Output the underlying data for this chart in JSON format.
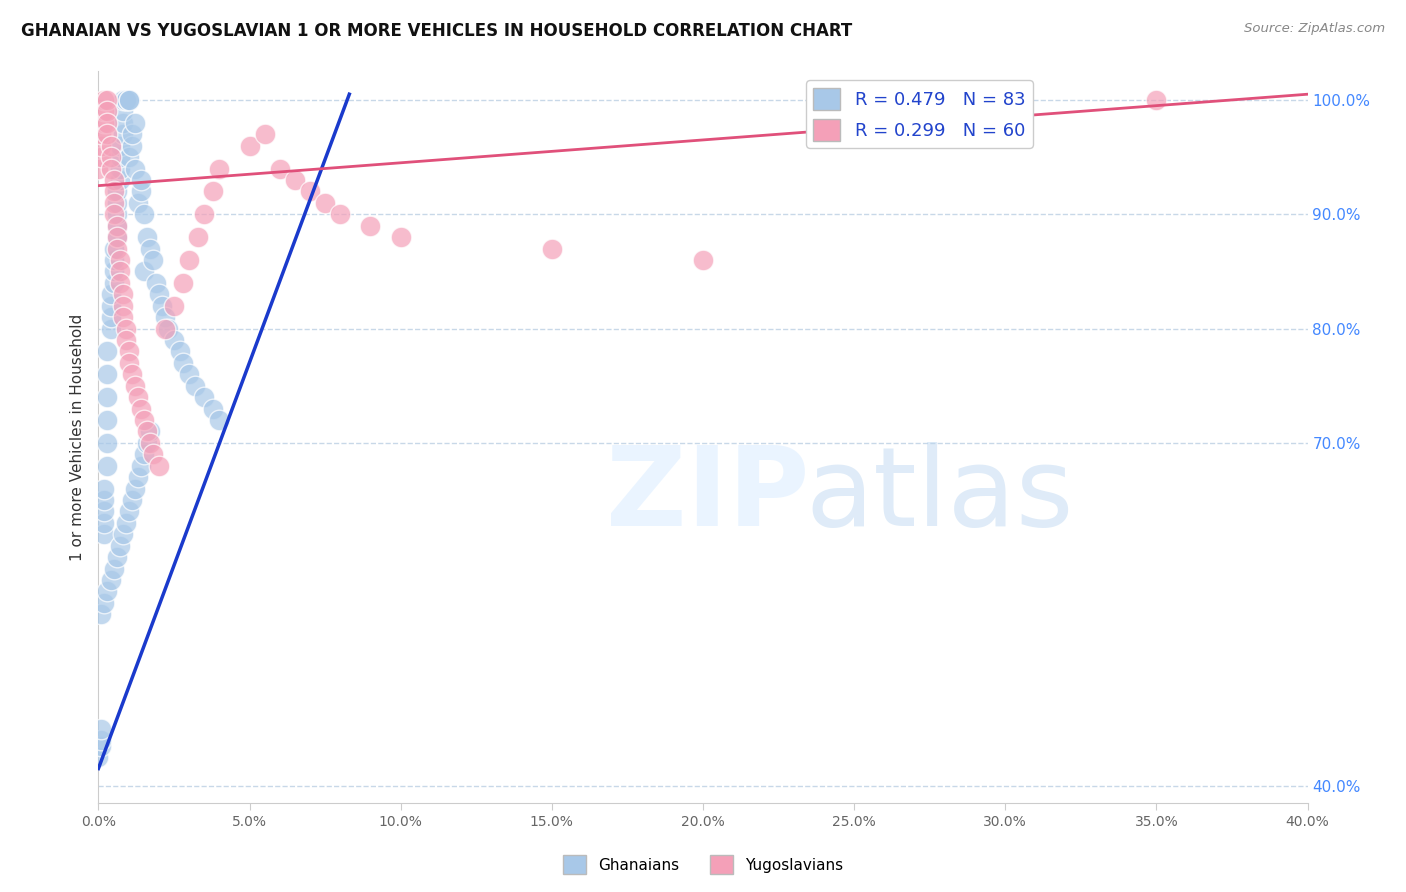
{
  "title": "GHANAIAN VS YUGOSLAVIAN 1 OR MORE VEHICLES IN HOUSEHOLD CORRELATION CHART",
  "source": "Source: ZipAtlas.com",
  "ylabel": "1 or more Vehicles in Household",
  "legend_blue": "R = 0.479   N = 83",
  "legend_pink": "R = 0.299   N = 60",
  "blue_color": "#a8c8e8",
  "pink_color": "#f4a0b8",
  "line_blue": "#1a3acc",
  "line_pink": "#e0507a",
  "ytick_labels": [
    "100.0%",
    "90.0%",
    "80.0%",
    "70.0%",
    "40.0%"
  ],
  "ytick_values": [
    1.0,
    0.9,
    0.8,
    0.7,
    0.4
  ],
  "xmin": 0.0,
  "xmax": 0.4,
  "ymin": 0.385,
  "ymax": 1.025,
  "blue_line_x": [
    0.0,
    0.083
  ],
  "blue_line_y": [
    0.415,
    1.005
  ],
  "pink_line_x": [
    0.0,
    0.4
  ],
  "pink_line_y": [
    0.925,
    1.005
  ],
  "blue_scatter_x": [
    0.0,
    0.001,
    0.001,
    0.001,
    0.002,
    0.002,
    0.002,
    0.002,
    0.002,
    0.003,
    0.003,
    0.003,
    0.003,
    0.003,
    0.003,
    0.004,
    0.004,
    0.004,
    0.004,
    0.005,
    0.005,
    0.005,
    0.005,
    0.006,
    0.006,
    0.006,
    0.006,
    0.006,
    0.007,
    0.007,
    0.007,
    0.007,
    0.008,
    0.008,
    0.008,
    0.008,
    0.009,
    0.009,
    0.01,
    0.01,
    0.01,
    0.011,
    0.011,
    0.012,
    0.012,
    0.013,
    0.014,
    0.014,
    0.015,
    0.015,
    0.016,
    0.017,
    0.018,
    0.019,
    0.02,
    0.021,
    0.022,
    0.023,
    0.025,
    0.027,
    0.028,
    0.03,
    0.032,
    0.035,
    0.038,
    0.04,
    0.001,
    0.002,
    0.003,
    0.004,
    0.005,
    0.006,
    0.007,
    0.008,
    0.009,
    0.01,
    0.011,
    0.012,
    0.013,
    0.014,
    0.015,
    0.016,
    0.017
  ],
  "blue_scatter_y": [
    0.425,
    0.435,
    0.44,
    0.45,
    0.62,
    0.63,
    0.64,
    0.65,
    0.66,
    0.68,
    0.7,
    0.72,
    0.74,
    0.76,
    0.78,
    0.8,
    0.81,
    0.82,
    0.83,
    0.84,
    0.85,
    0.86,
    0.87,
    0.88,
    0.89,
    0.9,
    0.91,
    0.92,
    0.93,
    0.94,
    0.95,
    0.96,
    0.97,
    0.98,
    0.99,
    1.0,
    1.0,
    1.0,
    1.0,
    1.0,
    0.95,
    0.96,
    0.97,
    0.94,
    0.98,
    0.91,
    0.92,
    0.93,
    0.9,
    0.85,
    0.88,
    0.87,
    0.86,
    0.84,
    0.83,
    0.82,
    0.81,
    0.8,
    0.79,
    0.78,
    0.77,
    0.76,
    0.75,
    0.74,
    0.73,
    0.72,
    0.55,
    0.56,
    0.57,
    0.58,
    0.59,
    0.6,
    0.61,
    0.62,
    0.63,
    0.64,
    0.65,
    0.66,
    0.67,
    0.68,
    0.69,
    0.7,
    0.71
  ],
  "pink_scatter_x": [
    0.0,
    0.001,
    0.001,
    0.001,
    0.002,
    0.002,
    0.002,
    0.003,
    0.003,
    0.003,
    0.003,
    0.004,
    0.004,
    0.004,
    0.005,
    0.005,
    0.005,
    0.005,
    0.006,
    0.006,
    0.006,
    0.007,
    0.007,
    0.007,
    0.008,
    0.008,
    0.008,
    0.009,
    0.009,
    0.01,
    0.01,
    0.011,
    0.012,
    0.013,
    0.014,
    0.015,
    0.016,
    0.017,
    0.018,
    0.02,
    0.022,
    0.025,
    0.028,
    0.03,
    0.033,
    0.035,
    0.038,
    0.04,
    0.05,
    0.055,
    0.06,
    0.065,
    0.07,
    0.075,
    0.08,
    0.09,
    0.1,
    0.15,
    0.2,
    0.35
  ],
  "pink_scatter_y": [
    0.94,
    0.95,
    0.96,
    0.97,
    0.98,
    0.99,
    1.0,
    1.0,
    0.99,
    0.98,
    0.97,
    0.96,
    0.95,
    0.94,
    0.93,
    0.92,
    0.91,
    0.9,
    0.89,
    0.88,
    0.87,
    0.86,
    0.85,
    0.84,
    0.83,
    0.82,
    0.81,
    0.8,
    0.79,
    0.78,
    0.77,
    0.76,
    0.75,
    0.74,
    0.73,
    0.72,
    0.71,
    0.7,
    0.69,
    0.68,
    0.8,
    0.82,
    0.84,
    0.86,
    0.88,
    0.9,
    0.92,
    0.94,
    0.96,
    0.97,
    0.94,
    0.93,
    0.92,
    0.91,
    0.9,
    0.89,
    0.88,
    0.87,
    0.86,
    1.0
  ]
}
